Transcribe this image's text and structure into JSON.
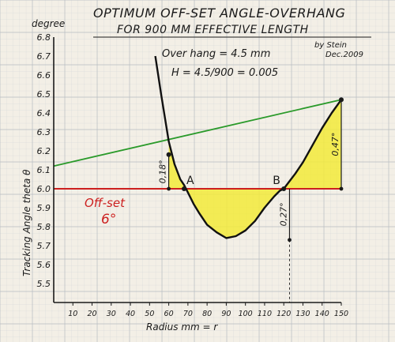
{
  "chart_data": {
    "type": "line",
    "title_line1": "OPTIMUM OFF-SET ANGLE-OVERHANG",
    "title_line2": "FOR 900 MM EFFECTIVE LENGTH",
    "byline_1": "by Stein",
    "byline_2": "Dec.2009",
    "formula_1": "Over hang = 4.5 mm",
    "formula_2": "H = 4.5/900 = 0.005",
    "ylabel": "Tracking Angle theta θ",
    "y_unit": "degree",
    "xlabel": "Radius mm = r",
    "ylim": [
      5.4,
      6.8
    ],
    "xlim": [
      0,
      150
    ],
    "y_ticks": [
      "6.8",
      "6.7",
      "6.6",
      "6.5",
      "6.4",
      "6.3",
      "6.2",
      "6.1",
      "6.0",
      "5.9",
      "5.8",
      "5.7",
      "5.6",
      "5.5"
    ],
    "y_tick_values": [
      6.8,
      6.7,
      6.6,
      6.5,
      6.4,
      6.3,
      6.2,
      6.1,
      6.0,
      5.9,
      5.8,
      5.7,
      5.6,
      5.5
    ],
    "x_ticks": [
      "10",
      "20",
      "30",
      "40",
      "50",
      "60",
      "70",
      "80",
      "90",
      "100",
      "110",
      "120",
      "130",
      "140",
      "150"
    ],
    "x_tick_values": [
      10,
      20,
      30,
      40,
      50,
      60,
      70,
      80,
      90,
      100,
      110,
      120,
      130,
      140,
      150
    ],
    "offset_line": {
      "label": "Off-set",
      "value_label": "6°",
      "y": 6.0,
      "color": "#cc1f1f"
    },
    "chord_line": {
      "x1": 60,
      "y1": 6.18,
      "x2": 150,
      "y2": 6.47,
      "color": "#2a9a2a"
    },
    "curve": {
      "color": "#111111",
      "x": [
        53,
        56,
        60,
        63,
        66,
        68,
        70,
        73,
        76,
        80,
        85,
        90,
        95,
        100,
        105,
        110,
        115,
        118,
        120,
        123,
        126,
        130,
        135,
        140,
        145,
        150
      ],
      "y": [
        6.7,
        6.5,
        6.25,
        6.13,
        6.05,
        6.02,
        5.98,
        5.92,
        5.87,
        5.81,
        5.77,
        5.74,
        5.75,
        5.78,
        5.83,
        5.9,
        5.96,
        5.99,
        6.0,
        6.04,
        6.08,
        6.14,
        6.23,
        6.32,
        6.4,
        6.47
      ]
    },
    "null_points": [
      {
        "label": "A",
        "x": 68,
        "y": 6.0
      },
      {
        "label": "B",
        "x": 120,
        "y": 6.0
      }
    ],
    "markers": [
      {
        "label": "0,18°",
        "x": 60,
        "y_top": 6.18,
        "y_bottom": 6.0
      },
      {
        "label": "0,27°",
        "x": 123,
        "y_top": 6.0,
        "y_bottom": 5.73
      },
      {
        "label": "0,47°",
        "x": 150,
        "y_top": 6.47,
        "y_bottom": 6.0
      }
    ],
    "fill_color": "#f2ea3a",
    "grid": true,
    "legend": "none"
  }
}
